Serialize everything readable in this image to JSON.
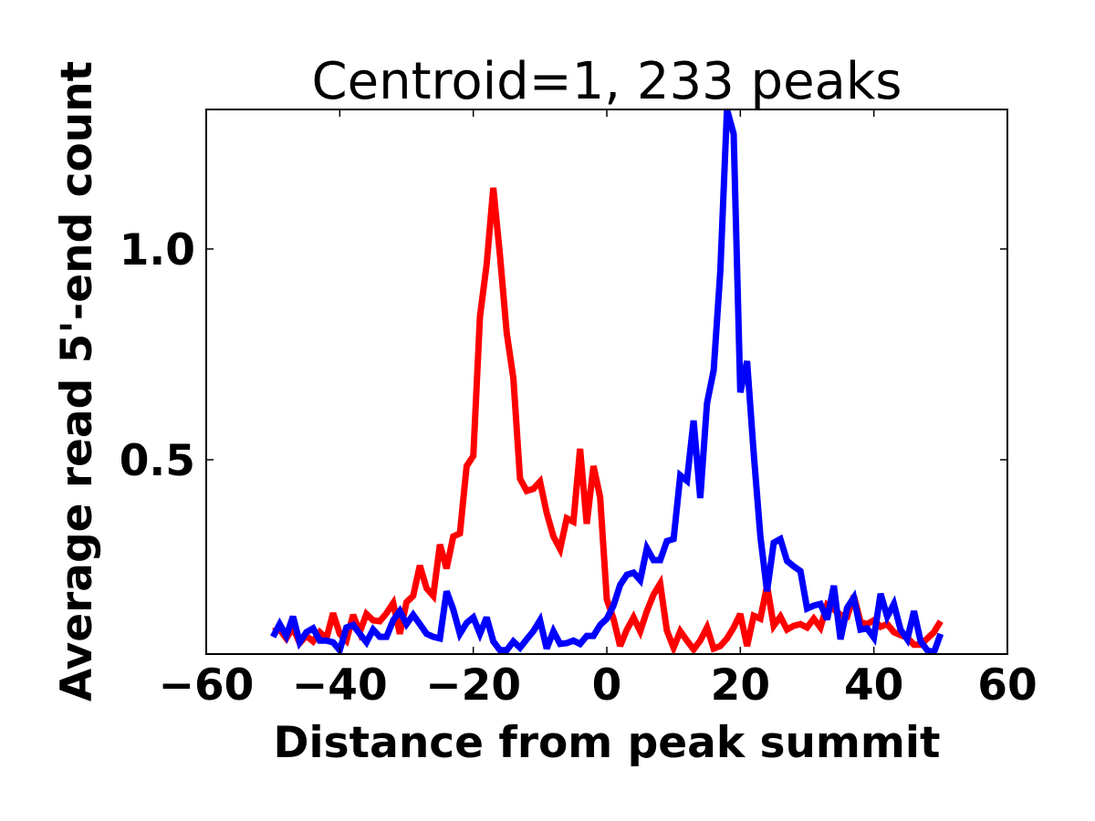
{
  "chart_data": {
    "type": "line",
    "title": "Centroid=1, 233 peaks",
    "xlabel": "Distance from peak summit",
    "ylabel": "Average read 5'-end count",
    "xlim": [
      -60,
      60
    ],
    "ylim": [
      0.039,
      1.331
    ],
    "xticks": [
      -60,
      -40,
      -20,
      0,
      20,
      40,
      60
    ],
    "xtick_labels": [
      "−60",
      "−40",
      "−20",
      "0",
      "20",
      "40",
      "60"
    ],
    "yticks": [
      0.5,
      1.0
    ],
    "ytick_labels": [
      "0.5",
      "1.0"
    ],
    "grid": false,
    "x_start": -50,
    "x_step": 1,
    "series": [
      {
        "name": "red",
        "color": "#ff0000",
        "values": [
          0.093,
          0.097,
          0.076,
          0.102,
          0.065,
          0.082,
          0.069,
          0.091,
          0.076,
          0.136,
          0.087,
          0.071,
          0.132,
          0.091,
          0.134,
          0.119,
          0.117,
          0.136,
          0.16,
          0.087,
          0.162,
          0.177,
          0.249,
          0.195,
          0.177,
          0.299,
          0.242,
          0.318,
          0.325,
          0.485,
          0.509,
          0.84,
          0.963,
          1.145,
          0.985,
          0.801,
          0.693,
          0.455,
          0.426,
          0.431,
          0.448,
          0.374,
          0.318,
          0.288,
          0.361,
          0.353,
          0.526,
          0.348,
          0.485,
          0.411,
          0.169,
          0.123,
          0.058,
          0.097,
          0.126,
          0.093,
          0.141,
          0.18,
          0.206,
          0.095,
          0.054,
          0.093,
          0.071,
          0.05,
          0.071,
          0.102,
          0.052,
          0.058,
          0.076,
          0.102,
          0.134,
          0.058,
          0.13,
          0.123,
          0.201,
          0.106,
          0.128,
          0.097,
          0.106,
          0.11,
          0.102,
          0.123,
          0.102,
          0.156,
          0.145,
          0.132,
          0.128,
          0.177,
          0.115,
          0.11,
          0.119,
          0.104,
          0.11,
          0.091,
          0.084,
          0.078,
          0.061,
          0.061,
          0.076,
          0.091,
          0.117
        ]
      },
      {
        "name": "blue",
        "color": "#0000ff",
        "values": [
          0.08,
          0.11,
          0.082,
          0.128,
          0.067,
          0.091,
          0.1,
          0.071,
          0.071,
          0.067,
          0.048,
          0.102,
          0.108,
          0.087,
          0.067,
          0.097,
          0.08,
          0.08,
          0.119,
          0.141,
          0.11,
          0.132,
          0.11,
          0.087,
          0.08,
          0.076,
          0.188,
          0.145,
          0.087,
          0.113,
          0.126,
          0.087,
          0.126,
          0.069,
          0.048,
          0.048,
          0.069,
          0.054,
          0.074,
          0.093,
          0.119,
          0.052,
          0.093,
          0.063,
          0.065,
          0.071,
          0.063,
          0.082,
          0.082,
          0.108,
          0.123,
          0.154,
          0.203,
          0.227,
          0.232,
          0.214,
          0.29,
          0.262,
          0.262,
          0.307,
          0.312,
          0.463,
          0.45,
          0.593,
          0.409,
          0.634,
          0.712,
          0.948,
          1.331,
          1.273,
          0.66,
          0.734,
          0.515,
          0.318,
          0.188,
          0.303,
          0.312,
          0.26,
          0.247,
          0.236,
          0.147,
          0.154,
          0.158,
          0.121,
          0.201,
          0.074,
          0.149,
          0.173,
          0.097,
          0.1,
          0.078,
          0.182,
          0.128,
          0.158,
          0.097,
          0.074,
          0.141,
          0.069,
          0.048,
          0.043,
          0.087
        ]
      }
    ]
  }
}
